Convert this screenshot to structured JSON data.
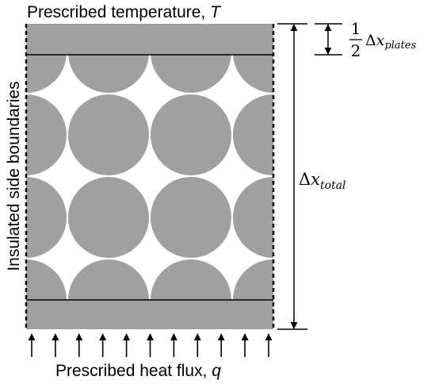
{
  "labels": {
    "top_boundary": "Prescribed temperature, ",
    "top_symbol": "T",
    "side_boundaries": "Insulated side boundaries",
    "bottom_boundary": "Prescribed heat flux, ",
    "bottom_symbol": "q",
    "half_numerator": "1",
    "half_denominator": "2",
    "delta_symbol": "Δ",
    "x_symbol": "x",
    "plates_subscript": "plates",
    "total_subscript": "total"
  },
  "colors": {
    "material": "#a0a0a0",
    "lines": "#000000",
    "background": "#ffffff"
  },
  "particle_grid": {
    "rows": 4,
    "columns": 4
  },
  "heat_flux_arrow_count": 11
}
